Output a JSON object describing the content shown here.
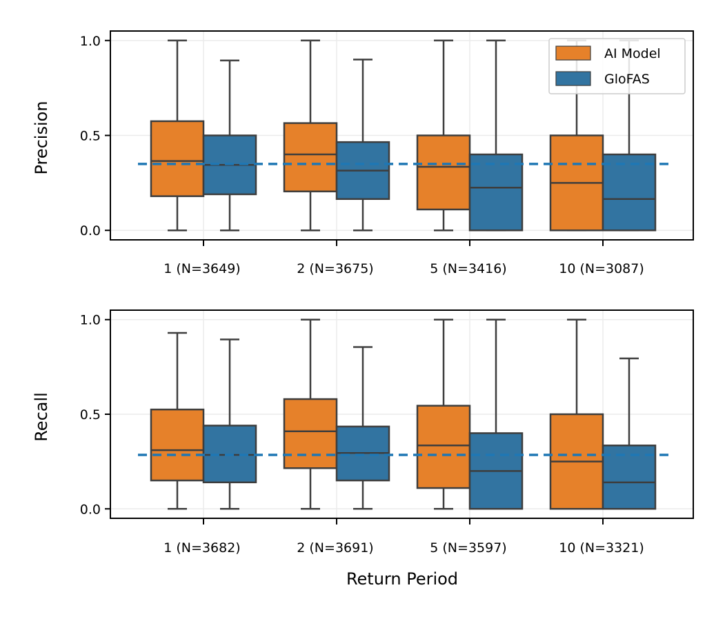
{
  "colors": {
    "ai_model": "#e6812a",
    "glofas": "#3274a1",
    "box_edge": "#3d3d3d",
    "baseline": "#1f77b4",
    "grid": "#ebebeb"
  },
  "legend": {
    "items": [
      {
        "label": "AI Model",
        "color": "#e6812a"
      },
      {
        "label": "GloFAS",
        "color": "#3274a1"
      }
    ],
    "placement": "top-right of precision panel"
  },
  "xlabel": "Return Period",
  "chart_data": [
    {
      "type": "box",
      "ylabel": "Precision",
      "ylim": [
        -0.05,
        1.05
      ],
      "yticks": [
        0.0,
        0.5,
        1.0
      ],
      "ytick_labels": [
        "0.0",
        "0.5",
        "1.0"
      ],
      "categories": [
        "1 (N=3649)",
        "2 (N=3675)",
        "5 (N=3416)",
        "10 (N=3087)"
      ],
      "baseline": 0.35,
      "series": [
        {
          "name": "AI Model",
          "boxes": [
            {
              "whislo": 0.0,
              "q1": 0.18,
              "med": 0.365,
              "q3": 0.575,
              "whishi": 1.0
            },
            {
              "whislo": 0.0,
              "q1": 0.205,
              "med": 0.4,
              "q3": 0.565,
              "whishi": 1.0
            },
            {
              "whislo": 0.0,
              "q1": 0.11,
              "med": 0.335,
              "q3": 0.5,
              "whishi": 1.0
            },
            {
              "whislo": 0.0,
              "q1": 0.0,
              "med": 0.25,
              "q3": 0.5,
              "whishi": 1.0
            }
          ]
        },
        {
          "name": "GloFAS",
          "boxes": [
            {
              "whislo": 0.0,
              "q1": 0.19,
              "med": 0.345,
              "q3": 0.5,
              "whishi": 0.895
            },
            {
              "whislo": 0.0,
              "q1": 0.165,
              "med": 0.315,
              "q3": 0.465,
              "whishi": 0.9
            },
            {
              "whislo": 0.0,
              "q1": 0.0,
              "med": 0.225,
              "q3": 0.4,
              "whishi": 1.0
            },
            {
              "whislo": 0.0,
              "q1": 0.0,
              "med": 0.165,
              "q3": 0.4,
              "whishi": 1.0
            }
          ]
        }
      ]
    },
    {
      "type": "box",
      "ylabel": "Recall",
      "ylim": [
        -0.05,
        1.05
      ],
      "yticks": [
        0.0,
        0.5,
        1.0
      ],
      "ytick_labels": [
        "0.0",
        "0.5",
        "1.0"
      ],
      "categories": [
        "1 (N=3682)",
        "2 (N=3691)",
        "5 (N=3597)",
        "10 (N=3321)"
      ],
      "baseline": 0.285,
      "series": [
        {
          "name": "AI Model",
          "boxes": [
            {
              "whislo": 0.0,
              "q1": 0.15,
              "med": 0.31,
              "q3": 0.525,
              "whishi": 0.93
            },
            {
              "whislo": 0.0,
              "q1": 0.215,
              "med": 0.41,
              "q3": 0.58,
              "whishi": 1.0
            },
            {
              "whislo": 0.0,
              "q1": 0.11,
              "med": 0.335,
              "q3": 0.545,
              "whishi": 1.0
            },
            {
              "whislo": 0.0,
              "q1": 0.0,
              "med": 0.25,
              "q3": 0.5,
              "whishi": 1.0
            }
          ]
        },
        {
          "name": "GloFAS",
          "boxes": [
            {
              "whislo": 0.0,
              "q1": 0.14,
              "med": 0.285,
              "q3": 0.44,
              "whishi": 0.895
            },
            {
              "whislo": 0.0,
              "q1": 0.15,
              "med": 0.295,
              "q3": 0.435,
              "whishi": 0.855
            },
            {
              "whislo": 0.0,
              "q1": 0.0,
              "med": 0.2,
              "q3": 0.4,
              "whishi": 1.0
            },
            {
              "whislo": 0.0,
              "q1": 0.0,
              "med": 0.14,
              "q3": 0.335,
              "whishi": 0.795
            }
          ]
        }
      ]
    }
  ]
}
